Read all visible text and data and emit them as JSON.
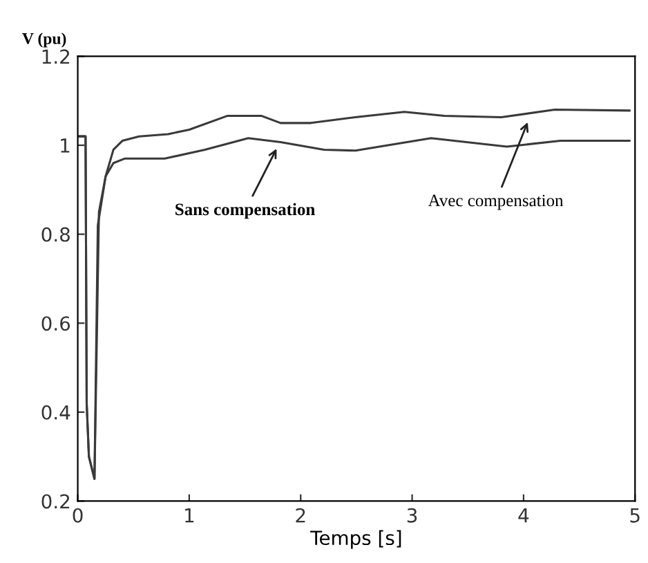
{
  "chart_data": {
    "type": "line",
    "xlabel": "Temps [s]",
    "ylabel": "V (pu)",
    "xlim": [
      0,
      5
    ],
    "ylim": [
      0.2,
      1.2
    ],
    "xticks": [
      0,
      1,
      2,
      3,
      4,
      5
    ],
    "yticks": [
      0.2,
      0.4,
      0.6,
      0.8,
      1,
      1.2
    ],
    "grid": false,
    "marker": "none",
    "line_style": "solid",
    "series": [
      {
        "color": "#3a3a3a",
        "x": [
          0,
          0.07,
          0.08,
          0.1,
          0.15,
          0.18,
          0.25,
          0.32,
          0.4,
          0.55,
          0.81,
          1.0,
          1.34,
          1.65,
          1.82,
          2.09,
          2.49,
          2.93,
          3.29,
          3.8,
          4.28,
          4.95
        ],
        "values": [
          1.02,
          1.02,
          0.42,
          0.3,
          0.25,
          0.82,
          0.93,
          0.99,
          1.01,
          1.02,
          1.025,
          1.035,
          1.066,
          1.066,
          1.05,
          1.05,
          1.063,
          1.075,
          1.066,
          1.063,
          1.08,
          1.078
        ]
      },
      {
        "color": "#3a3a3a",
        "x": [
          0,
          0.07,
          0.08,
          0.1,
          0.15,
          0.19,
          0.25,
          0.32,
          0.42,
          0.78,
          1.14,
          1.53,
          1.82,
          2.21,
          2.49,
          3.17,
          3.85,
          4.33,
          4.95
        ],
        "values": [
          1.02,
          1.02,
          0.42,
          0.3,
          0.25,
          0.85,
          0.93,
          0.96,
          0.97,
          0.97,
          0.99,
          1.016,
          1.007,
          0.99,
          0.988,
          1.016,
          0.997,
          1.01,
          1.01
        ]
      }
    ],
    "annotations": [
      {
        "text": "Sans compensation",
        "x": 1.8,
        "y": 1.0
      },
      {
        "text": "Avec compensation",
        "x": 4.05,
        "y": 1.06
      }
    ]
  }
}
